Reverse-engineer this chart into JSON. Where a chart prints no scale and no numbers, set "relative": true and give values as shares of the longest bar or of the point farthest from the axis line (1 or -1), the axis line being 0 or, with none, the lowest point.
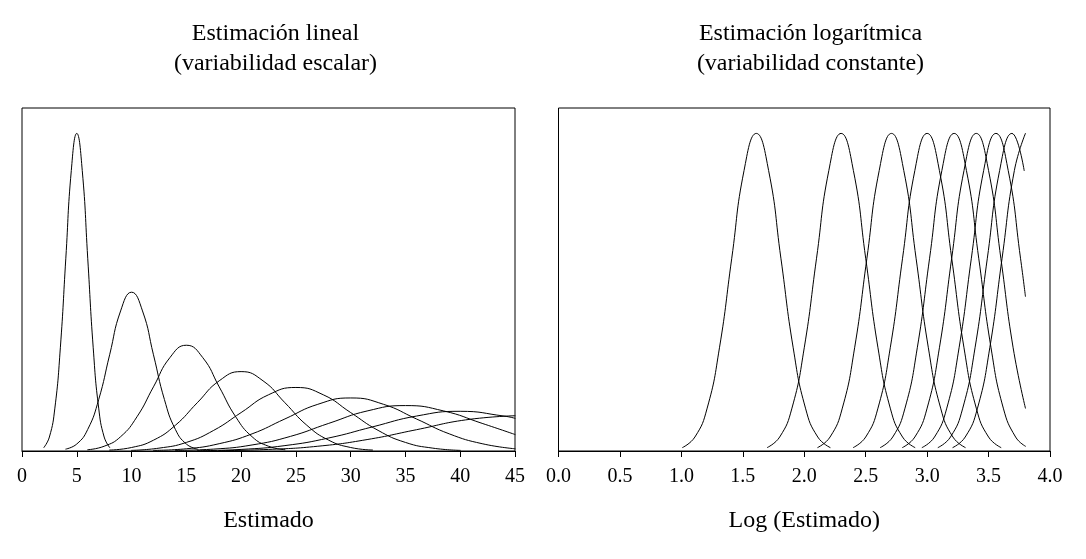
{
  "chart_data": [
    {
      "type": "line",
      "title": "Estimación lineal\n(variabilidad escalar)",
      "xlabel": "Estimado",
      "relative": true,
      "xlim": [
        0,
        45
      ],
      "xticks": [
        0,
        5,
        10,
        15,
        20,
        25,
        30,
        35,
        40,
        45
      ],
      "marker": "none",
      "line_style": "solid",
      "series": [
        {
          "color": "#000000",
          "x": [
            2,
            2.5,
            3,
            3.5,
            4,
            4.5,
            5,
            5.5,
            6,
            6.5,
            7,
            7.5,
            8
          ],
          "values": [
            0.011,
            0.044,
            0.135,
            0.325,
            0.607,
            0.883,
            1,
            0.883,
            0.607,
            0.325,
            0.135,
            0.044,
            0.011
          ]
        },
        {
          "color": "#000000",
          "x": [
            4,
            5,
            6,
            7,
            8,
            9,
            10,
            11,
            12,
            13,
            14,
            15,
            16
          ],
          "values": [
            0.006,
            0.022,
            0.068,
            0.162,
            0.303,
            0.441,
            0.5,
            0.441,
            0.303,
            0.162,
            0.068,
            0.022,
            0.006
          ]
        },
        {
          "color": "#000000",
          "x": [
            6,
            7.5,
            9,
            10.5,
            12,
            13.5,
            15,
            16.5,
            18,
            19.5,
            21,
            22.5,
            24
          ],
          "values": [
            0.004,
            0.015,
            0.045,
            0.108,
            0.202,
            0.294,
            0.333,
            0.294,
            0.202,
            0.108,
            0.045,
            0.015,
            0.004
          ]
        },
        {
          "color": "#000000",
          "x": [
            8,
            10,
            12,
            14,
            16,
            18,
            20,
            22,
            24,
            26,
            28,
            30,
            32
          ],
          "values": [
            0.003,
            0.011,
            0.034,
            0.081,
            0.152,
            0.221,
            0.25,
            0.221,
            0.152,
            0.081,
            0.034,
            0.011,
            0.003
          ]
        },
        {
          "color": "#000000",
          "x": [
            10,
            12.5,
            15,
            17.5,
            20,
            22.5,
            25,
            27.5,
            30,
            32.5,
            35,
            37.5,
            40
          ],
          "values": [
            0.002,
            0.009,
            0.027,
            0.065,
            0.121,
            0.177,
            0.2,
            0.177,
            0.121,
            0.065,
            0.027,
            0.009,
            0.002
          ]
        },
        {
          "color": "#000000",
          "x": [
            12,
            15,
            18,
            21,
            24,
            27,
            30,
            33,
            36,
            39,
            42,
            45
          ],
          "values": [
            0.002,
            0.007,
            0.023,
            0.054,
            0.101,
            0.147,
            0.167,
            0.147,
            0.101,
            0.054,
            0.023,
            0.007
          ]
        },
        {
          "color": "#000000",
          "x": [
            14,
            17.5,
            21,
            24.5,
            28,
            31.5,
            35,
            38.5,
            42,
            45
          ],
          "values": [
            0.002,
            0.006,
            0.019,
            0.046,
            0.087,
            0.126,
            0.143,
            0.126,
            0.087,
            0.052
          ]
        },
        {
          "color": "#000000",
          "x": [
            16,
            20,
            24,
            28,
            32,
            36,
            40,
            44,
            45
          ],
          "values": [
            0.001,
            0.005,
            0.017,
            0.041,
            0.076,
            0.11,
            0.125,
            0.11,
            0.103
          ]
        },
        {
          "color": "#000000",
          "x": [
            18,
            22.5,
            27,
            31.5,
            36,
            40.5,
            45
          ],
          "values": [
            0.001,
            0.005,
            0.015,
            0.036,
            0.067,
            0.098,
            0.111
          ]
        }
      ]
    },
    {
      "type": "line",
      "title": "Estimación logarítmica\n(variabilidad constante)",
      "xlabel": "Log (Estimado)",
      "relative": true,
      "xlim": [
        0,
        4
      ],
      "xticks": [
        {
          "value": 0,
          "label": "0.0"
        },
        {
          "value": 0.5,
          "label": "0.5"
        },
        {
          "value": 1,
          "label": "1.0"
        },
        {
          "value": 1.5,
          "label": "1.5"
        },
        {
          "value": 2,
          "label": "2.0"
        },
        {
          "value": 2.5,
          "label": "2.5"
        },
        {
          "value": 3,
          "label": "3.0"
        },
        {
          "value": 3.5,
          "label": "3.5"
        },
        {
          "value": 4,
          "label": "4.0"
        }
      ],
      "marker": "none",
      "line_style": "solid",
      "series": [
        {
          "color": "#000000",
          "x": [
            1.01,
            1.11,
            1.21,
            1.31,
            1.41,
            1.51,
            1.61,
            1.71,
            1.81,
            1.91,
            2.01,
            2.11,
            2.21
          ],
          "values": [
            0.011,
            0.044,
            0.135,
            0.325,
            0.607,
            0.883,
            1,
            0.883,
            0.607,
            0.325,
            0.135,
            0.044,
            0.011
          ]
        },
        {
          "color": "#000000",
          "x": [
            1.7,
            1.8,
            1.9,
            2,
            2.1,
            2.2,
            2.3,
            2.4,
            2.5,
            2.6,
            2.7,
            2.8,
            2.9
          ],
          "values": [
            0.011,
            0.044,
            0.135,
            0.325,
            0.607,
            0.883,
            1,
            0.883,
            0.607,
            0.325,
            0.135,
            0.044,
            0.011
          ]
        },
        {
          "color": "#000000",
          "x": [
            2.11,
            2.21,
            2.31,
            2.41,
            2.51,
            2.61,
            2.71,
            2.81,
            2.91,
            3.01,
            3.11,
            3.21,
            3.31
          ],
          "values": [
            0.011,
            0.044,
            0.135,
            0.325,
            0.607,
            0.883,
            1,
            0.883,
            0.607,
            0.325,
            0.135,
            0.044,
            0.011
          ]
        },
        {
          "color": "#000000",
          "x": [
            2.4,
            2.5,
            2.6,
            2.7,
            2.8,
            2.9,
            3,
            3.1,
            3.2,
            3.3,
            3.4,
            3.5,
            3.6
          ],
          "values": [
            0.011,
            0.044,
            0.135,
            0.325,
            0.607,
            0.883,
            1,
            0.883,
            0.607,
            0.325,
            0.135,
            0.044,
            0.011
          ]
        },
        {
          "color": "#000000",
          "x": [
            2.62,
            2.72,
            2.82,
            2.92,
            3.02,
            3.12,
            3.22,
            3.32,
            3.42,
            3.52,
            3.62,
            3.72,
            3.8
          ],
          "values": [
            0.011,
            0.044,
            0.135,
            0.325,
            0.607,
            0.883,
            1,
            0.883,
            0.607,
            0.325,
            0.135,
            0.044,
            0.015
          ]
        },
        {
          "color": "#000000",
          "x": [
            2.8,
            2.9,
            3,
            3.1,
            3.2,
            3.3,
            3.4,
            3.5,
            3.6,
            3.7,
            3.8
          ],
          "values": [
            0.011,
            0.044,
            0.135,
            0.325,
            0.607,
            0.883,
            1,
            0.883,
            0.607,
            0.325,
            0.135
          ]
        },
        {
          "color": "#000000",
          "x": [
            2.96,
            3.06,
            3.16,
            3.26,
            3.36,
            3.46,
            3.56,
            3.66,
            3.76,
            3.8
          ],
          "values": [
            0.011,
            0.044,
            0.135,
            0.325,
            0.607,
            0.883,
            1,
            0.883,
            0.607,
            0.487
          ]
        },
        {
          "color": "#000000",
          "x": [
            3.09,
            3.19,
            3.29,
            3.39,
            3.49,
            3.59,
            3.69,
            3.79
          ],
          "values": [
            0.011,
            0.044,
            0.135,
            0.325,
            0.607,
            0.883,
            1,
            0.883
          ]
        },
        {
          "color": "#000000",
          "x": [
            3.21,
            3.31,
            3.41,
            3.51,
            3.61,
            3.71,
            3.8
          ],
          "values": [
            0.011,
            0.044,
            0.135,
            0.325,
            0.607,
            0.883,
            1
          ]
        }
      ]
    }
  ]
}
